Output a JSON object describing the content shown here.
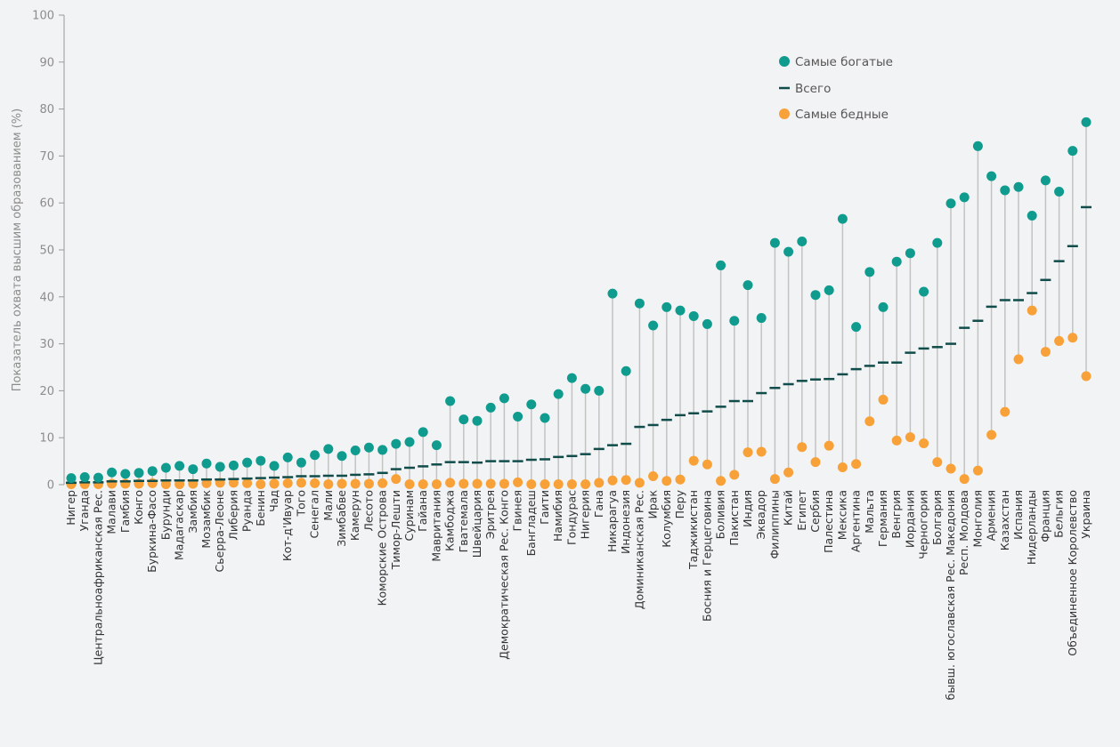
{
  "chart_data": {
    "type": "scatter",
    "ylabel": "Показатель охвата высшим образованием (%)",
    "xlabel": "",
    "ylim": [
      0,
      100
    ],
    "yticks": [
      0,
      10,
      20,
      30,
      40,
      50,
      60,
      70,
      80,
      90,
      100
    ],
    "grid": false,
    "legend_position": "top-right",
    "categories": [
      "Нигер",
      "Уганда",
      "Центральноафриканская Рес.",
      "Малави",
      "Гамбия",
      "Конго",
      "Буркина-Фасо",
      "Бурунди",
      "Мадагаскар",
      "Замбия",
      "Мозамбик",
      "Сьерра-Леоне",
      "Либерия",
      "Руанда",
      "Бенин",
      "Чад",
      "Кот-д'Ивуар",
      "Того",
      "Сенегал",
      "Мали",
      "Зимбабве",
      "Камерун",
      "Лесото",
      "Коморские Острова",
      "Тимор-Лешти",
      "Суринам",
      "Гайана",
      "Мавритания",
      "Камбоджа",
      "Гватемала",
      "Швейцария",
      "Эритрея",
      "Демократическая Рес. Конго",
      "Гвинея",
      "Бангладеш",
      "Гаити",
      "Намибия",
      "Гондурас",
      "Нигерия",
      "Гана",
      "Никарагуа",
      "Индонезия",
      "Доминиканская Рес.",
      "Ирак",
      "Колумбия",
      "Перу",
      "Таджикистан",
      "Босния и Герцеговина",
      "Боливия",
      "Пакистан",
      "Индия",
      "Эквадор",
      "Филиппины",
      "Китай",
      "Египет",
      "Сербия",
      "Палестина",
      "Мексика",
      "Аргентина",
      "Мальта",
      "Германия",
      "Венгрия",
      "Иордания",
      "Черногория",
      "Болгария",
      "бывш. югославская Рес. Македония",
      "Респ. Молдова",
      "Монголия",
      "Армения",
      "Казахстан",
      "Испания",
      "Нидерланды",
      "Франция",
      "Бельгия",
      "Объединенное Королевство",
      "Украина"
    ],
    "series": [
      {
        "name": "Самые богатые",
        "color": "#0f9b8e",
        "marker": "circle",
        "values": [
          1.4,
          1.6,
          1.5,
          2.6,
          2.3,
          2.5,
          2.9,
          3.6,
          4.0,
          3.3,
          4.5,
          3.8,
          4.1,
          4.7,
          5.1,
          4.0,
          5.8,
          4.7,
          6.3,
          7.6,
          6.1,
          7.3,
          7.9,
          7.4,
          8.7,
          9.1,
          11.2,
          8.4,
          17.8,
          13.9,
          13.6,
          16.4,
          18.4,
          14.5,
          17.1,
          14.2,
          19.3,
          22.7,
          20.4,
          20.0,
          40.7,
          24.2,
          38.6,
          33.9,
          37.8,
          37.1,
          35.9,
          34.2,
          46.7,
          34.9,
          42.5,
          35.5,
          51.5,
          49.6,
          51.8,
          40.4,
          41.4,
          56.6,
          33.6,
          45.3,
          37.8,
          47.5,
          49.3,
          41.1,
          51.5,
          59.9,
          61.2,
          72.1,
          65.7,
          62.7,
          63.4,
          57.3,
          64.8,
          62.4,
          71.1,
          77.2
        ]
      },
      {
        "name": "Всего",
        "color": "#0f4c4a",
        "marker": "dash",
        "values": [
          0.4,
          0.5,
          0.5,
          0.7,
          0.7,
          0.8,
          0.8,
          0.9,
          0.9,
          0.9,
          1.1,
          1.1,
          1.2,
          1.3,
          1.4,
          1.5,
          1.6,
          1.8,
          1.8,
          1.9,
          1.9,
          2.1,
          2.2,
          2.5,
          3.3,
          3.6,
          3.9,
          4.3,
          4.8,
          4.8,
          4.7,
          5.0,
          5.0,
          5.0,
          5.3,
          5.4,
          5.9,
          6.1,
          6.5,
          7.6,
          8.4,
          8.7,
          12.3,
          12.7,
          13.8,
          14.8,
          15.2,
          15.6,
          16.6,
          17.8,
          17.8,
          19.5,
          20.6,
          21.4,
          22.1,
          22.4,
          22.5,
          23.5,
          24.6,
          25.3,
          26.0,
          26.0,
          28.1,
          29.0,
          29.3,
          30.0,
          33.4,
          34.9,
          37.9,
          39.3,
          39.3,
          40.8,
          43.6,
          47.6,
          50.8,
          59.1
        ]
      },
      {
        "name": "Самые бедные",
        "color": "#f7a138",
        "marker": "circle",
        "values": [
          0.1,
          0.1,
          0.1,
          0.2,
          0.2,
          0.2,
          0.3,
          0.1,
          0.1,
          0.2,
          0.3,
          0.4,
          0.4,
          0.3,
          0.1,
          0.2,
          0.3,
          0.4,
          0.3,
          0.1,
          0.2,
          0.2,
          0.2,
          0.3,
          1.2,
          0.1,
          0.1,
          0.1,
          0.4,
          0.2,
          0.2,
          0.2,
          0.2,
          0.5,
          0.1,
          0.1,
          0.1,
          0.1,
          0.1,
          0.4,
          0.9,
          1.0,
          0.4,
          1.8,
          0.8,
          1.1,
          5.1,
          4.3,
          0.8,
          2.1,
          6.9,
          7.0,
          1.2,
          2.6,
          8.0,
          4.8,
          8.3,
          3.7,
          4.4,
          13.5,
          18.1,
          9.4,
          10.1,
          8.8,
          4.8,
          3.4,
          1.2,
          3.0,
          10.6,
          15.5,
          26.7,
          37.1,
          28.3,
          30.6,
          31.3,
          23.1
        ]
      }
    ]
  }
}
